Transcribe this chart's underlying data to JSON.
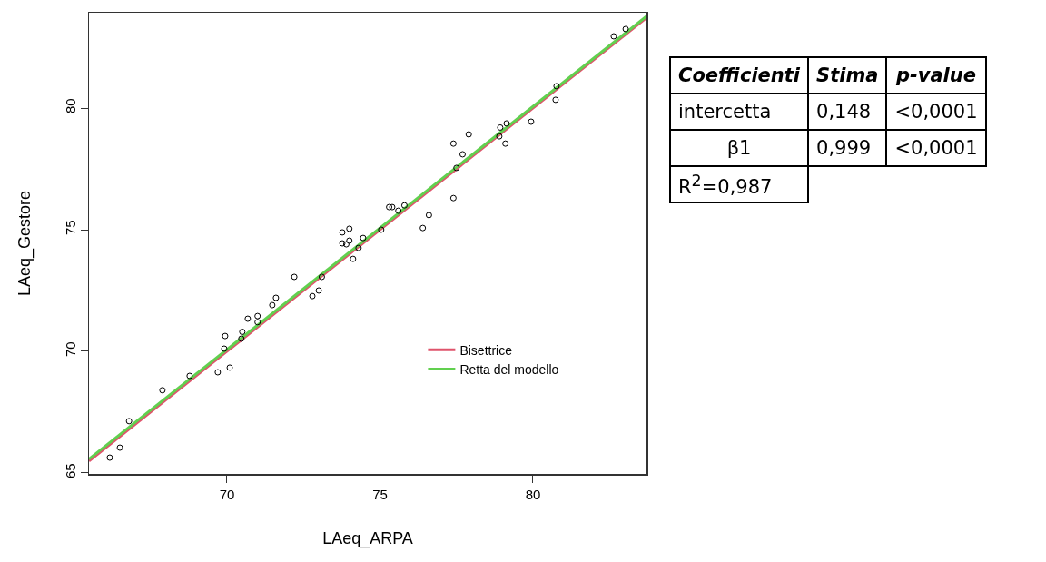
{
  "chart_data": [
    {
      "type": "scatter",
      "xlabel": "LAeq_ARPA",
      "ylabel": "LAeq_Gestore",
      "xlim": [
        65.49,
        83.71
      ],
      "ylim": [
        64.96,
        83.92
      ],
      "xticks": [
        70,
        75,
        80
      ],
      "yticks": [
        65,
        70,
        75,
        80
      ],
      "grid": false,
      "legend": "bottom right",
      "series": [
        {
          "color": "#000000",
          "marker": "circle",
          "x": [
            66.17,
            66.5,
            66.8,
            67.89,
            68.78,
            69.7,
            69.94,
            70.09,
            69.91,
            70.5,
            70.47,
            70.68,
            71.0,
            71.0,
            71.48,
            71.6,
            72.2,
            72.79,
            73.0,
            73.1,
            73.77,
            73.77,
            74.0,
            73.9,
            74.0,
            74.12,
            74.3,
            74.45,
            75.04,
            75.3,
            75.4,
            75.6,
            75.8,
            76.4,
            76.6,
            77.4,
            77.4,
            77.5,
            77.7,
            77.9,
            78.9,
            78.93,
            79.1,
            79.14,
            79.94,
            80.74,
            80.77,
            82.64,
            83.03
          ],
          "values": [
            65.63,
            66.04,
            67.13,
            68.4,
            68.99,
            69.14,
            70.63,
            69.33,
            70.11,
            70.8,
            70.52,
            71.34,
            71.45,
            71.2,
            71.9,
            72.2,
            73.06,
            72.27,
            72.5,
            73.06,
            74.89,
            74.44,
            75.04,
            74.4,
            74.55,
            73.8,
            74.25,
            74.66,
            75.0,
            75.93,
            75.93,
            75.78,
            76.0,
            75.07,
            75.6,
            76.3,
            78.54,
            77.54,
            78.1,
            78.92,
            78.84,
            79.2,
            78.54,
            79.37,
            79.44,
            80.34,
            80.9,
            82.95,
            83.25
          ]
        },
        {
          "type": "line",
          "name": "Bisettrice",
          "color": "#df536b",
          "line_style": "solid",
          "marker": "none",
          "x": [
            65.49,
            83.71
          ],
          "values": [
            65.49,
            83.71
          ]
        },
        {
          "type": "line",
          "name": "Retta del modello",
          "color": "#61d04f",
          "line_style": "solid",
          "marker": "none",
          "x": [
            65.49,
            83.71
          ],
          "values": [
            65.57,
            83.77
          ]
        }
      ]
    },
    {
      "type": "other",
      "annotations": [
        "Coefficienti",
        "Stima",
        "p-value",
        "intercetta",
        "0,148",
        "<0,0001",
        "β1",
        "0,999",
        "<0,0001",
        "R$^{2}$=0,987"
      ]
    }
  ]
}
